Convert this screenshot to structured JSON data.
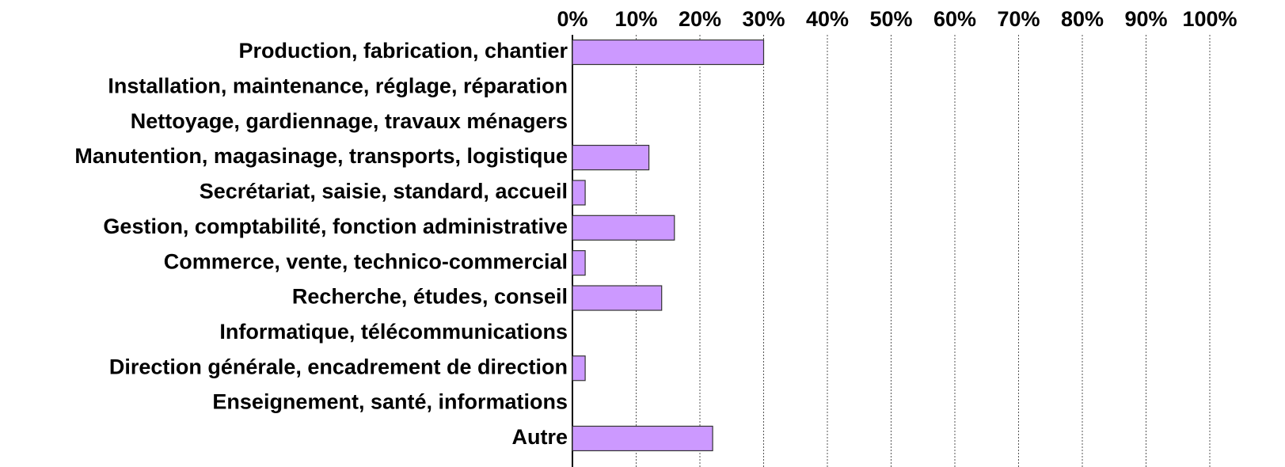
{
  "chart_data": {
    "type": "barh",
    "categories": [
      "Production, fabrication, chantier",
      "Installation, maintenance, réglage, réparation",
      "Nettoyage, gardiennage, travaux ménagers",
      "Manutention, magasinage, transports, logistique",
      "Secrétariat, saisie, standard, accueil",
      "Gestion, comptabilité, fonction administrative",
      "Commerce, vente, technico-commercial",
      "Recherche, études, conseil",
      "Informatique, télécommunications",
      "Direction générale, encadrement de direction",
      "Enseignement, santé, informations",
      "Autre"
    ],
    "values": [
      30,
      0,
      0,
      12,
      2,
      16,
      2,
      14,
      0,
      2,
      0,
      22
    ],
    "color": "#cc99ff",
    "xlim": [
      0,
      100
    ],
    "xticks": [
      {
        "value": 0,
        "label": "0%"
      },
      {
        "value": 10,
        "label": "10%"
      },
      {
        "value": 20,
        "label": "20%"
      },
      {
        "value": 30,
        "label": "30%"
      },
      {
        "value": 40,
        "label": "40%"
      },
      {
        "value": 50,
        "label": "50%"
      },
      {
        "value": 60,
        "label": "60%"
      },
      {
        "value": 70,
        "label": "70%"
      },
      {
        "value": 80,
        "label": "80%"
      },
      {
        "value": 90,
        "label": "90%"
      },
      {
        "value": 100,
        "label": "100%"
      }
    ],
    "grid": true
  }
}
